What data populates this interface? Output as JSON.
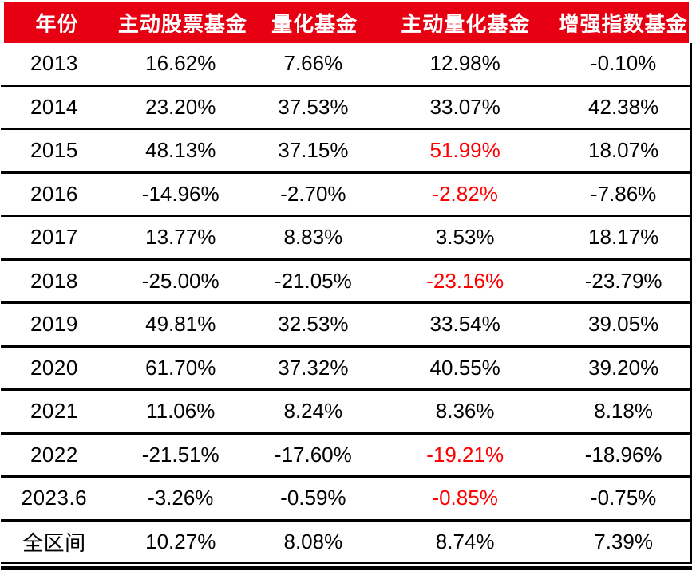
{
  "chart_data": {
    "type": "table",
    "title": "",
    "columns": [
      "年份",
      "主动股票基金",
      "量化基金",
      "主动量化基金",
      "增强指数基金"
    ],
    "rows": [
      {
        "year": "2013",
        "values": [
          "16.62%",
          "7.66%",
          "12.98%",
          "-0.10%"
        ],
        "red_value_indexes": []
      },
      {
        "year": "2014",
        "values": [
          "23.20%",
          "37.53%",
          "33.07%",
          "42.38%"
        ],
        "red_value_indexes": []
      },
      {
        "year": "2015",
        "values": [
          "48.13%",
          "37.15%",
          "51.99%",
          "18.07%"
        ],
        "red_value_indexes": [
          2
        ]
      },
      {
        "year": "2016",
        "values": [
          "-14.96%",
          "-2.70%",
          "-2.82%",
          "-7.86%"
        ],
        "red_value_indexes": [
          2
        ]
      },
      {
        "year": "2017",
        "values": [
          "13.77%",
          "8.83%",
          "3.53%",
          "18.17%"
        ],
        "red_value_indexes": []
      },
      {
        "year": "2018",
        "values": [
          "-25.00%",
          "-21.05%",
          "-23.16%",
          "-23.79%"
        ],
        "red_value_indexes": [
          2
        ]
      },
      {
        "year": "2019",
        "values": [
          "49.81%",
          "32.53%",
          "33.54%",
          "39.05%"
        ],
        "red_value_indexes": []
      },
      {
        "year": "2020",
        "values": [
          "61.70%",
          "37.32%",
          "40.55%",
          "39.20%"
        ],
        "red_value_indexes": []
      },
      {
        "year": "2021",
        "values": [
          "11.06%",
          "8.24%",
          "8.36%",
          "8.18%"
        ],
        "red_value_indexes": []
      },
      {
        "year": "2022",
        "values": [
          "-21.51%",
          "-17.60%",
          "-19.21%",
          "-18.96%"
        ],
        "red_value_indexes": [
          2
        ]
      },
      {
        "year": "2023.6",
        "values": [
          "-3.26%",
          "-0.59%",
          "-0.85%",
          "-0.75%"
        ],
        "red_value_indexes": [
          2
        ]
      },
      {
        "year": "全区间",
        "values": [
          "10.27%",
          "8.08%",
          "8.74%",
          "7.39%"
        ],
        "red_value_indexes": []
      }
    ],
    "legend_position": "none",
    "grid": "horizontal-rules-with-right-border-and-double-bottom-rule"
  },
  "style": {
    "header_bg": "#e60012",
    "header_text": "#ffffff",
    "highlight_red": "#fe0000",
    "body_text": "#000000",
    "rule_color": "#000000"
  }
}
